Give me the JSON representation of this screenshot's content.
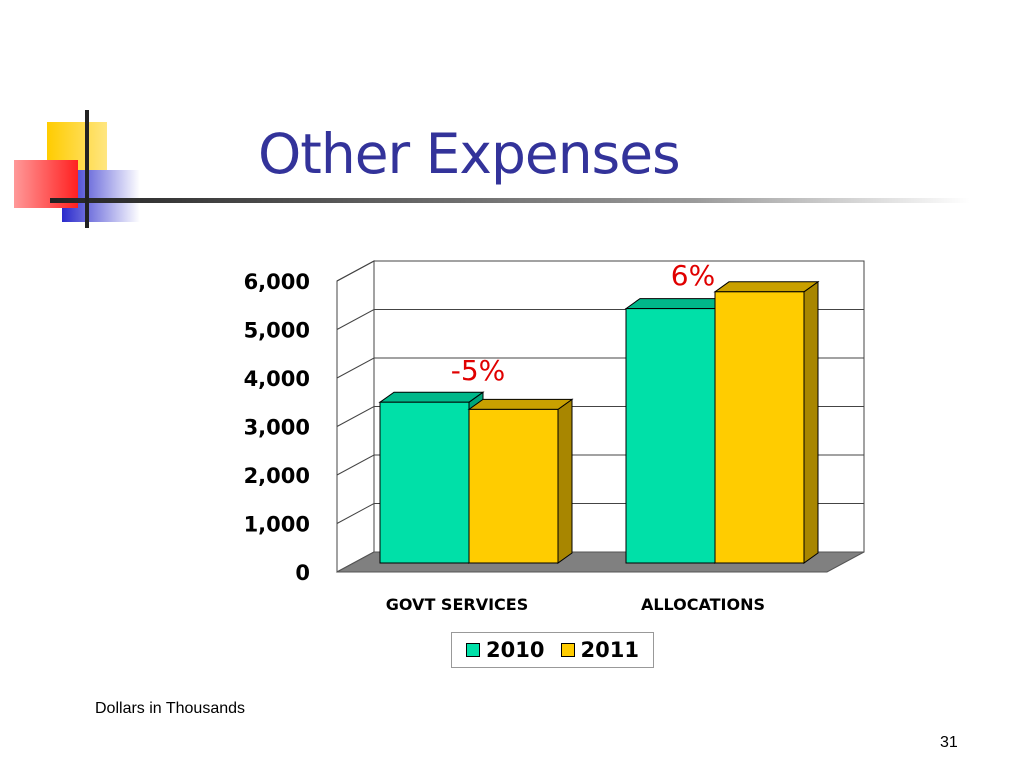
{
  "slide": {
    "title": "Other Expenses",
    "footnote": "Dollars in Thousands",
    "page_number": "31"
  },
  "colors": {
    "title": "#33339a",
    "series_2010": "#00e0a8",
    "series_2011": "#ffcc00",
    "annotation": "#e00000",
    "accent_red": "#ff3030",
    "accent_blue": "#3333cc",
    "accent_yellow": "#ffcc00"
  },
  "chart_data": {
    "type": "bar",
    "categories": [
      "GOVT SERVICES",
      "ALLOCATIONS"
    ],
    "series": [
      {
        "name": "2010",
        "values": [
          3350,
          5300
        ]
      },
      {
        "name": "2011",
        "values": [
          3200,
          5650
        ]
      }
    ],
    "ylim": [
      0,
      6000
    ],
    "yticks": [
      "0",
      "1,000",
      "2,000",
      "3,000",
      "4,000",
      "5,000",
      "6,000"
    ],
    "annotations": [
      "-5%",
      "6%"
    ],
    "grid": true,
    "legend_position": "bottom"
  }
}
